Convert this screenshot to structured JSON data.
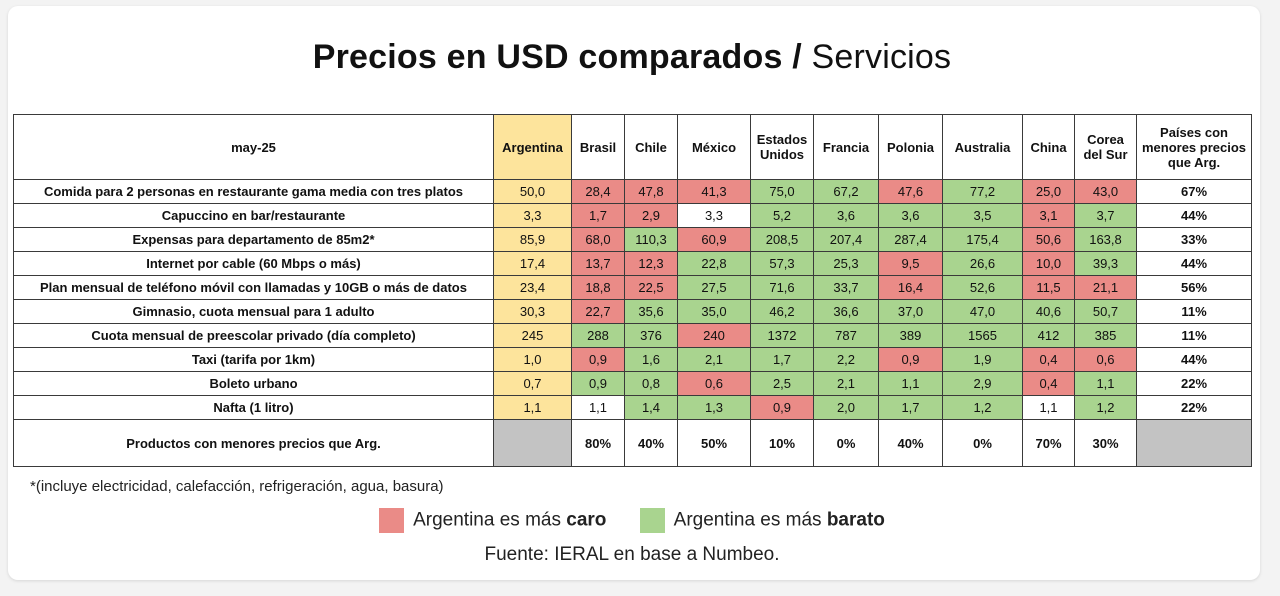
{
  "chart_data": {
    "type": "table",
    "title_bold": "Precios en USD comparados /",
    "title_light": "Servicios",
    "header": {
      "corner": "may-25",
      "countries": [
        "Argentina",
        "Brasil",
        "Chile",
        "México",
        "Estados Unidos",
        "Francia",
        "Polonia",
        "Australia",
        "China",
        "Corea del Sur"
      ],
      "last": "Países con menores precios que Arg."
    },
    "rows": [
      {
        "label": "Comida para 2 personas en restaurante gama media con tres platos",
        "values": [
          "50,0",
          "28,4",
          "47,8",
          "41,3",
          "75,0",
          "67,2",
          "47,6",
          "77,2",
          "25,0",
          "43,0"
        ],
        "pct": "67%"
      },
      {
        "label": "Capuccino en bar/restaurante",
        "values": [
          "3,3",
          "1,7",
          "2,9",
          "3,3",
          "5,2",
          "3,6",
          "3,6",
          "3,5",
          "3,1",
          "3,7"
        ],
        "pct": "44%"
      },
      {
        "label": "Expensas para departamento de 85m2*",
        "values": [
          "85,9",
          "68,0",
          "110,3",
          "60,9",
          "208,5",
          "207,4",
          "287,4",
          "175,4",
          "50,6",
          "163,8"
        ],
        "pct": "33%"
      },
      {
        "label": "Internet por cable (60 Mbps o más)",
        "values": [
          "17,4",
          "13,7",
          "12,3",
          "22,8",
          "57,3",
          "25,3",
          "9,5",
          "26,6",
          "10,0",
          "39,3"
        ],
        "pct": "44%"
      },
      {
        "label": "Plan mensual de teléfono móvil con llamadas y 10GB o más de datos",
        "values": [
          "23,4",
          "18,8",
          "22,5",
          "27,5",
          "71,6",
          "33,7",
          "16,4",
          "52,6",
          "11,5",
          "21,1"
        ],
        "pct": "56%"
      },
      {
        "label": "Gimnasio, cuota mensual para 1 adulto",
        "values": [
          "30,3",
          "22,7",
          "35,6",
          "35,0",
          "46,2",
          "36,6",
          "37,0",
          "47,0",
          "40,6",
          "50,7"
        ],
        "pct": "11%"
      },
      {
        "label": "Cuota mensual de preescolar privado (día completo)",
        "values": [
          "245",
          "288",
          "376",
          "240",
          "1372",
          "787",
          "389",
          "1565",
          "412",
          "385"
        ],
        "pct": "11%"
      },
      {
        "label": "Taxi (tarifa por 1km)",
        "values": [
          "1,0",
          "0,9",
          "1,6",
          "2,1",
          "1,7",
          "2,2",
          "0,9",
          "1,9",
          "0,4",
          "0,6"
        ],
        "pct": "44%"
      },
      {
        "label": "Boleto urbano",
        "values": [
          "0,7",
          "0,9",
          "0,8",
          "0,6",
          "2,5",
          "2,1",
          "1,1",
          "2,9",
          "0,4",
          "1,1"
        ],
        "pct": "22%"
      },
      {
        "label": "Nafta (1 litro)",
        "values": [
          "1,1",
          "1,1",
          "1,4",
          "1,3",
          "0,9",
          "2,0",
          "1,7",
          "1,2",
          "1,1",
          "1,2"
        ],
        "pct": "22%"
      }
    ],
    "summary": {
      "label": "Productos con menores precios que Arg.",
      "values": [
        "",
        "80%",
        "40%",
        "50%",
        "10%",
        "0%",
        "40%",
        "0%",
        "70%",
        "30%"
      ],
      "last": ""
    },
    "colors": {
      "argentina": "#fde49c",
      "caro": "#ea8b87",
      "barato": "#a9d48f",
      "gray": "#c3c3c3"
    }
  },
  "footnote": "*(incluye electricidad, calefacción, refrigeración, agua, basura)",
  "legend": {
    "caro_prefix": "Argentina es más",
    "caro_bold": "caro",
    "barato_prefix": "Argentina es más",
    "barato_bold": "barato"
  },
  "source": "Fuente: IERAL en base a Numbeo."
}
